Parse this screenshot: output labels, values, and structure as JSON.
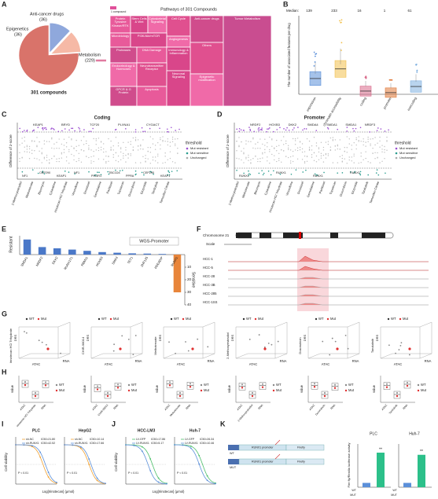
{
  "panels": [
    "A",
    "B",
    "C",
    "D",
    "E",
    "F",
    "G",
    "H",
    "I",
    "J",
    "K"
  ],
  "A": {
    "pie": {
      "center": "301 compounds",
      "slices": [
        {
          "name": "Metabolism",
          "value": 229,
          "value_label": "(229)",
          "color": "#d9736a"
        },
        {
          "name": "Anti-cancer drugs",
          "value": 36,
          "value_label": "(36)",
          "color": "#8fa8dc"
        },
        {
          "name": "Epigenetics",
          "value": 36,
          "value_label": "(36)",
          "color": "#f6b9a6"
        }
      ]
    },
    "treemap": {
      "title": "Pathways of 301 Compounds",
      "legend": "1 compound",
      "tiles": [
        "Protein Tyrosine Kinase/RTK",
        "Stem Cells & Wnt",
        "Cytoskeletal Signaling",
        "Cell Cycle",
        "Anti-cancer drugs",
        "Microbiology",
        "PI3K/Akt/mTOR",
        "Angiogenesis",
        "Others",
        "Proteases",
        "DNA Damage",
        "Immunology & Inflammation",
        "Endocrinology & Hormones",
        "Neurotransmitter Receptor",
        "GPCR & G Protein",
        "Apoptosis",
        "Neuronal Signaling",
        "Epigenetic modification",
        "Tumor Metabolism"
      ]
    }
  },
  "B": {
    "median_label": "Median:",
    "medians": [
      139,
      233,
      16,
      1,
      61
    ],
    "categories": [
      "expression",
      "chromatin accessibility",
      "coding",
      "promoter",
      "noncoding"
    ],
    "colors": [
      "#5b8fd9",
      "#f2c14e",
      "#d96a8a",
      "#e07a3a",
      "#7fb0e0"
    ],
    "ylabel": "The number of associated features per drug"
  },
  "C": {
    "title": "Coding",
    "ylabel": "Difference of z-score",
    "legend_title": "threshold",
    "legend": [
      {
        "name": "Mut resistant",
        "color": "#9b4fd0"
      },
      {
        "name": "Mut sensitive",
        "color": "#2a9d8f"
      },
      {
        "name": "Unchanged",
        "color": "#aaaaaa"
      }
    ],
    "top_genes": [
      "KEAP1",
      "BRYD",
      "TCF20",
      "PLXNA1",
      "CYGACT"
    ],
    "bottom_genes": [
      "NF1",
      "CEP290",
      "KEAP1",
      "NF1",
      "PIK3R1",
      "TBC1D4",
      "PPRA",
      "CEP290",
      "KEAP1"
    ],
    "drugs": [
      "2-Methoxyestradiol",
      "Methotrexate",
      "Bleomycin",
      "Cytarabine",
      "Irinotecan HCl Trihydrate",
      "Vinorelbine",
      "Docetaxel",
      "Gemcitabine",
      "Paclitaxel",
      "Topotecan",
      "Doxorubicin",
      "Etoposide",
      "Tandutinib",
      "Tamoxifen Citrate"
    ]
  },
  "D": {
    "title": "Promoter",
    "ylabel": "Difference of z-score",
    "legend_title": "threshold",
    "legend": [
      {
        "name": "Mut resistant",
        "color": "#9b4fd0"
      },
      {
        "name": "Mut sensitive",
        "color": "#2a9d8f"
      },
      {
        "name": "Unchanged",
        "color": "#aaaaaa"
      }
    ],
    "top_genes": [
      "NRDF2",
      "HOXB3",
      "DKK2",
      "SMDA4",
      "SMDA1",
      "SMDA1",
      "NRDF3"
    ],
    "bottom_genes": [
      "RUNX1",
      "RUNX1",
      "RUNX1",
      "RUNX1"
    ],
    "drugs": [
      "2-Methoxyestradiol",
      "Methotrexate",
      "Bleomycin",
      "Cytarabine",
      "Irinotecan HCl Trihydrate",
      "Vinorelbine",
      "Docetaxel",
      "Gemcitabine",
      "Paclitaxel",
      "Topotecan",
      "Doxorubicin",
      "Etoposide",
      "Tandutinib",
      "Tamoxifen Citrate"
    ]
  },
  "E": {
    "title": "WGS-Promoter",
    "ylabel_top": "Resistant",
    "ylabel_bottom": "Sensitive",
    "categories": [
      "SMDA1",
      "NRDF2",
      "DKK2",
      "RUNX1T1",
      "RBM11",
      "HOXB3",
      "SMA3",
      "TET1",
      "ZNF125",
      "PDE4DIP",
      "RUNX1"
    ],
    "values": [
      12,
      6,
      5,
      4,
      3,
      2,
      1.5,
      1,
      0.8,
      0.5,
      -30
    ],
    "color_resistant": "#4a78c8",
    "color_sensitive": "#e8853a",
    "ylim": [
      -40,
      15
    ],
    "yticks": [
      {
        "value": -10,
        "label": "10"
      },
      {
        "value": -20,
        "label": "20"
      },
      {
        "value": -30,
        "label": "30"
      },
      {
        "value": -40,
        "label": "40"
      }
    ]
  },
  "F": {
    "chromosome": "Chromosome 21",
    "scale": "Scale",
    "tracks": [
      "HCC-1",
      "HCC-5",
      "HCC-28",
      "HCC-3B",
      "HCC-285",
      "HCC-1SS"
    ]
  },
  "G": {
    "legend": [
      "WT",
      "Mut"
    ],
    "axes": [
      "ATAC",
      "RNA",
      "DRS"
    ],
    "drugs": [
      "Irinotecan HCl Trihydrate",
      "CHIR-98014",
      "Methotrexate",
      "2-Methoxyestradiol",
      "Doxorubicin",
      "Tandutinib"
    ]
  },
  "H": {
    "ylabel": "value",
    "legend": [
      "WT",
      "Mut"
    ]
  },
  "I": {
    "plots": [
      {
        "title": "PLC",
        "series": [
          "sh-NC",
          "sh-RUNX1"
        ],
        "ic50": [
          21.8,
          42.52
        ],
        "ic50_labels": [
          "IC50=21.80",
          "IC50=42.52"
        ],
        "p": "P < 0.01"
      },
      {
        "title": "HepG2",
        "series": [
          "sh-NC",
          "sh-RUNX1"
        ],
        "ic50": [
          10.14,
          17.66
        ],
        "ic50_labels": [
          "IC50=10.14",
          "IC50=17.66"
        ],
        "p": "P < 0.01"
      }
    ],
    "colors": [
      "#f0a030",
      "#5b8fd9"
    ],
    "ylabel": "Cell viability",
    "xlabel": "Log[Irinotecan] (μmol)"
  },
  "J": {
    "plots": [
      {
        "title": "HCC-LM3",
        "series": [
          "LV-GFP",
          "LV-RUNX1"
        ],
        "ic50": [
          17.86,
          5.17
        ],
        "ic50_labels": [
          "IC50=17.86",
          "IC50=5.17"
        ],
        "p": "P < 0.01"
      },
      {
        "title": "Huh-7",
        "series": [
          "LV-GFP",
          "LV-RUNX1"
        ],
        "ic50": [
          26.34,
          10.46
        ],
        "ic50_labels": [
          "IC50=26.34",
          "IC50=10.46"
        ],
        "p": "P < 0.01"
      }
    ],
    "colors": [
      "#4cbf6a",
      "#5b8fd9"
    ],
    "ylabel": "Cell viability",
    "xlabel": "Log[Irinotecan] (μmol)"
  },
  "K": {
    "construct": [
      "RUNX1 promoter",
      "Firefly"
    ],
    "rows": [
      "WT",
      "MUT"
    ],
    "cells": [
      "PLC",
      "Huh-7"
    ],
    "ylabel": "Fire fly/Renilla luciferase activity",
    "sig": "**",
    "values": [
      [
        1,
        8
      ],
      [
        1,
        7.5
      ]
    ],
    "ylim": [
      0,
      10
    ],
    "colors": [
      "#5b8fd9",
      "#2cc08a"
    ]
  }
}
